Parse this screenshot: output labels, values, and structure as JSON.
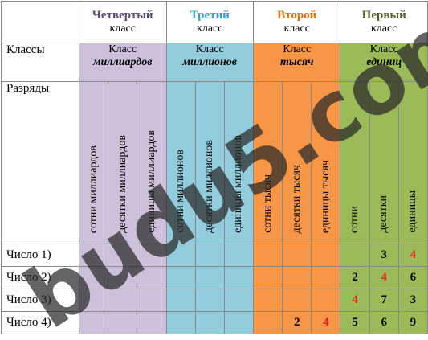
{
  "table": {
    "corner_classes": "Классы",
    "corner_digits": "Разряды",
    "groups": [
      {
        "title": "Четвертый",
        "title_color": "#5f497a",
        "subtitle": "класс",
        "class_word": "Класс",
        "class_name": "миллиардов",
        "fill": "#ccc0da",
        "digits": [
          "сотни миллиардов",
          "десятки миллиардов",
          "единицы миллиардов"
        ]
      },
      {
        "title": "Третий",
        "title_color": "#31a5c9",
        "subtitle": "класс",
        "class_word": "Класс",
        "class_name": "миллионов",
        "fill": "#93cddd",
        "digits": [
          "сотни миллионов",
          "десятки миллионов",
          "единицы  миллионов"
        ]
      },
      {
        "title": "Второй",
        "title_color": "#e36c09",
        "subtitle": "класс",
        "class_word": "Класс",
        "class_name": "тысяч",
        "fill": "#f79646",
        "digits": [
          "сотни тысяч",
          "десятки тысяч",
          "единицы тысяч"
        ]
      },
      {
        "title": "Первый",
        "title_color": "#4f6228",
        "subtitle": "класс",
        "class_word": "Класс",
        "class_name": "единиц",
        "fill": "#9bbb59",
        "digits": [
          "сотни",
          "десятки",
          "единицы"
        ]
      }
    ],
    "rows": [
      {
        "label": "Число 1)",
        "cells": [
          null,
          null,
          null,
          null,
          null,
          null,
          null,
          null,
          null,
          null,
          3,
          {
            "value": 4,
            "color": "#e02020"
          }
        ]
      },
      {
        "label": "Число 2)",
        "cells": [
          null,
          null,
          null,
          null,
          null,
          null,
          null,
          null,
          null,
          2,
          {
            "value": 4,
            "color": "#e02020"
          },
          6
        ]
      },
      {
        "label": "Число 3)",
        "cells": [
          null,
          null,
          null,
          null,
          null,
          null,
          null,
          null,
          null,
          {
            "value": 4,
            "color": "#e02020"
          },
          7,
          3
        ]
      },
      {
        "label": "Число 4)",
        "cells": [
          null,
          null,
          null,
          null,
          null,
          null,
          null,
          2,
          {
            "value": 4,
            "color": "#e02020"
          },
          5,
          6,
          9
        ]
      }
    ]
  },
  "watermark": "budu5.com"
}
